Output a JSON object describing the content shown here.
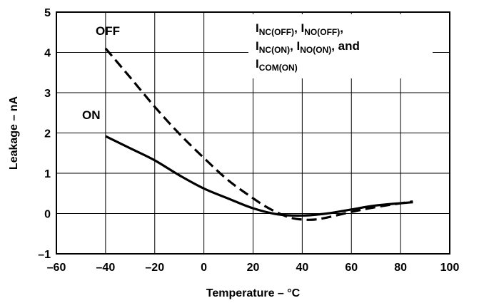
{
  "chart_data": {
    "type": "line",
    "title": "",
    "xlabel": "Temperature – °C",
    "ylabel": "Leakage – nA",
    "xlim": [
      -60,
      100
    ],
    "ylim": [
      -1,
      5
    ],
    "xticks": [
      -60,
      -40,
      -20,
      0,
      20,
      40,
      60,
      80,
      100
    ],
    "yticks": [
      -1,
      0,
      1,
      2,
      3,
      4,
      5
    ],
    "xtick_labels": [
      "–60",
      "–40",
      "–20",
      "0",
      "20",
      "40",
      "60",
      "80",
      "100"
    ],
    "ytick_labels": [
      "–1",
      "0",
      "1",
      "2",
      "3",
      "4",
      "5"
    ],
    "grid": true,
    "legend": "none",
    "series": [
      {
        "name": "OFF",
        "style": "dashed",
        "x": [
          -40,
          -30,
          -20,
          -10,
          0,
          10,
          20,
          25,
          30,
          35,
          40,
          45,
          50,
          60,
          70,
          85
        ],
        "y": [
          4.1,
          3.38,
          2.65,
          1.98,
          1.38,
          0.82,
          0.38,
          0.18,
          0.02,
          -0.1,
          -0.15,
          -0.15,
          -0.1,
          0.04,
          0.16,
          0.3
        ]
      },
      {
        "name": "ON",
        "style": "solid",
        "x": [
          -40,
          -30,
          -20,
          -10,
          0,
          10,
          20,
          30,
          40,
          50,
          60,
          70,
          85
        ],
        "y": [
          1.92,
          1.62,
          1.32,
          0.95,
          0.62,
          0.37,
          0.13,
          -0.02,
          -0.05,
          0.0,
          0.1,
          0.2,
          0.28
        ]
      }
    ],
    "annotation": {
      "lines": [
        [
          {
            "t": "I",
            "s": "main"
          },
          {
            "t": "NC(OFF)",
            "s": "sub"
          },
          {
            "t": ", I",
            "s": "main"
          },
          {
            "t": "NO(OFF)",
            "s": "sub"
          },
          {
            "t": ",",
            "s": "main"
          }
        ],
        [
          {
            "t": "I",
            "s": "main"
          },
          {
            "t": "NC(ON)",
            "s": "sub"
          },
          {
            "t": ", I",
            "s": "main"
          },
          {
            "t": "NO(ON)",
            "s": "sub"
          },
          {
            "t": ", and",
            "s": "main"
          }
        ],
        [
          {
            "t": "I",
            "s": "main"
          },
          {
            "t": "COM(ON)",
            "s": "sub"
          }
        ]
      ]
    }
  }
}
